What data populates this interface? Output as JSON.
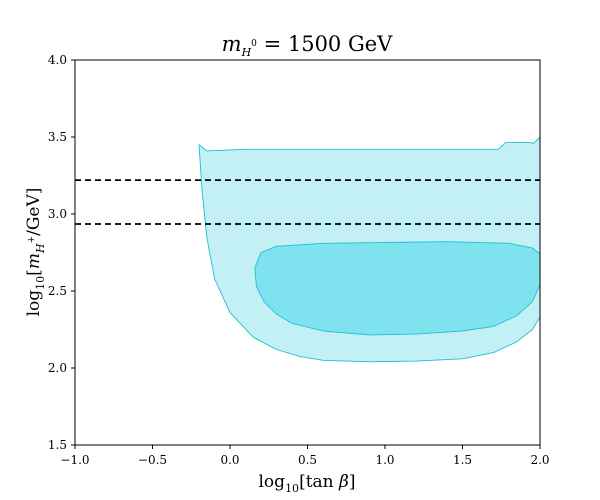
{
  "chart_data": {
    "type": "area",
    "title": "m_{H^0} = 1500 GeV",
    "xlabel": "log10[tan β]",
    "ylabel": "log10[m_{H+}/GeV]",
    "xlim": [
      -1.0,
      2.0
    ],
    "ylim": [
      1.5,
      4.0
    ],
    "xticks": [
      "−1.0",
      "−0.5",
      "0.0",
      "0.5",
      "1.0",
      "1.5",
      "2.0"
    ],
    "yticks": [
      "1.5",
      "2.0",
      "2.5",
      "3.0",
      "3.5",
      "4.0"
    ],
    "grid": false,
    "colors": {
      "outer_fill": "#c2f0f4",
      "inner_fill": "#7fe3ef",
      "contour_edge": "#1ec0d2",
      "dashed_line": "#000000"
    },
    "horizontal_lines": [
      {
        "y": 3.22,
        "style": "dashed"
      },
      {
        "y": 2.935,
        "style": "dashed"
      }
    ],
    "regions": [
      {
        "id": "outer-region",
        "x": [
          -0.2,
          -0.15,
          0.1,
          0.5,
          1.0,
          1.5,
          1.73,
          1.78,
          1.92,
          1.96,
          2.0,
          2.0,
          1.95,
          1.85,
          1.7,
          1.5,
          1.2,
          0.9,
          0.6,
          0.45,
          0.3,
          0.15,
          0.0,
          -0.1,
          -0.15,
          -0.18,
          -0.2
        ],
        "y": [
          3.45,
          3.41,
          3.42,
          3.42,
          3.42,
          3.42,
          3.42,
          3.465,
          3.465,
          3.46,
          3.5,
          2.33,
          2.25,
          2.17,
          2.1,
          2.06,
          2.045,
          2.04,
          2.05,
          2.075,
          2.12,
          2.2,
          2.36,
          2.58,
          2.85,
          3.15,
          3.45
        ]
      },
      {
        "id": "inner-region",
        "x": [
          0.2,
          0.3,
          0.6,
          1.0,
          1.4,
          1.8,
          1.95,
          2.0,
          2.0,
          1.95,
          1.85,
          1.7,
          1.5,
          1.2,
          0.9,
          0.6,
          0.4,
          0.3,
          0.22,
          0.17,
          0.16,
          0.2
        ],
        "y": [
          2.75,
          2.79,
          2.81,
          2.815,
          2.82,
          2.81,
          2.78,
          2.74,
          2.54,
          2.43,
          2.34,
          2.27,
          2.24,
          2.22,
          2.215,
          2.24,
          2.29,
          2.35,
          2.43,
          2.53,
          2.65,
          2.75
        ]
      }
    ]
  }
}
